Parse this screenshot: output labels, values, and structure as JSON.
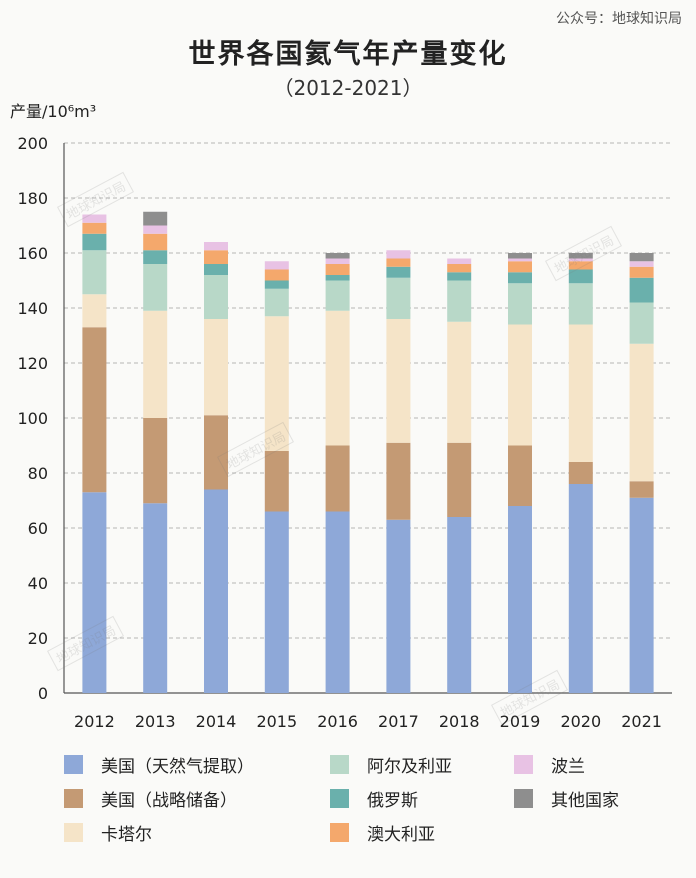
{
  "account_label": "公众号：地球知识局",
  "title": "世界各国氦气年产量变化",
  "subtitle": "（2012-2021）",
  "unit_label": "产量/10⁶m³",
  "watermark_text": "地球知识局",
  "chart_data": {
    "type": "bar",
    "stacked": true,
    "title": "世界各国氦气年产量变化",
    "subtitle": "（2012-2021）",
    "ylabel": "产量/10⁶m³",
    "ylim": [
      0,
      200
    ],
    "yticks": [
      0,
      20,
      40,
      60,
      80,
      100,
      120,
      140,
      160,
      180,
      200
    ],
    "grid": true,
    "legend_position": "bottom",
    "categories": [
      "2012",
      "2013",
      "2014",
      "2015",
      "2016",
      "2017",
      "2018",
      "2019",
      "2020",
      "2021"
    ],
    "series": [
      {
        "name": "美国（天然气提取）",
        "color": "#8ea8d8",
        "values": [
          73,
          69,
          74,
          66,
          66,
          63,
          64,
          68,
          76,
          71
        ]
      },
      {
        "name": "美国（战略储备）",
        "color": "#c49a74",
        "values": [
          60,
          31,
          27,
          22,
          24,
          28,
          27,
          22,
          8,
          6
        ]
      },
      {
        "name": "卡塔尔",
        "color": "#f5e4c8",
        "values": [
          12,
          39,
          35,
          49,
          49,
          45,
          44,
          44,
          50,
          50
        ]
      },
      {
        "name": "阿尔及利亚",
        "color": "#b8d8c8",
        "values": [
          16,
          17,
          16,
          10,
          11,
          15,
          15,
          15,
          15,
          15
        ]
      },
      {
        "name": "俄罗斯",
        "color": "#6ab0ac",
        "values": [
          6,
          5,
          4,
          3,
          2,
          4,
          3,
          4,
          5,
          9
        ]
      },
      {
        "name": "澳大利亚",
        "color": "#f4a86c",
        "values": [
          4,
          6,
          5,
          4,
          4,
          3,
          3,
          4,
          3,
          4
        ]
      },
      {
        "name": "波兰",
        "color": "#e8c2e4",
        "values": [
          3,
          3,
          3,
          3,
          2,
          3,
          2,
          1,
          1,
          2
        ]
      },
      {
        "name": "其他国家",
        "color": "#8e8e8e",
        "values": [
          0,
          5,
          0,
          0,
          2,
          0,
          0,
          2,
          2,
          3
        ]
      }
    ]
  }
}
